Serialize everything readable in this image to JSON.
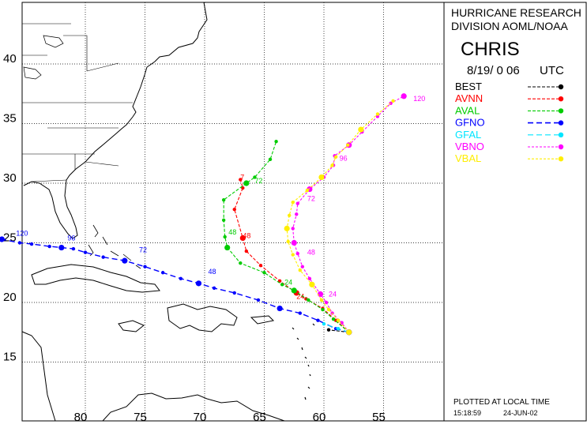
{
  "panel": {
    "org_line1": "HURRICANE RESEARCH",
    "org_line2": "DIVISION AOML/NOAA",
    "storm_name": "CHRIS",
    "date_time": "8/19/ 0 06",
    "time_zone": "UTC",
    "plotted_label": "PLOTTED AT LOCAL TIME",
    "plot_time": "15:18:59",
    "plot_date": "24-JUN-02"
  },
  "axes": {
    "lat_labels": [
      "40",
      "35",
      "30",
      "25",
      "20",
      "15"
    ],
    "lon_labels": [
      "80",
      "75",
      "70",
      "65",
      "60",
      "55"
    ],
    "lat_range": [
      10.5,
      44.5
    ],
    "lon_range": [
      -88.3,
      -52.5
    ]
  },
  "legend": [
    {
      "name": "BEST",
      "color": "#000000",
      "dash": "4,2"
    },
    {
      "name": "AVNN",
      "color": "#ff0000",
      "dash": "4,2"
    },
    {
      "name": "AVAL",
      "color": "#00cc00",
      "dash": "4,2"
    },
    {
      "name": "GFNO",
      "color": "#0000ff",
      "dash": "7,4"
    },
    {
      "name": "GFAL",
      "color": "#00e5ff",
      "dash": "7,4"
    },
    {
      "name": "VBNO",
      "color": "#ff00ff",
      "dash": "3,2"
    },
    {
      "name": "VBAL",
      "color": "#ffee00",
      "dash": "3,2"
    }
  ],
  "tracks": [
    {
      "name": "BEST",
      "color": "#000000",
      "points": [
        [
          -57.9,
          17.5
        ],
        [
          -59.6,
          17.7
        ]
      ],
      "labels": []
    },
    {
      "name": "AVNN",
      "color": "#ff0000",
      "points": [
        [
          -57.9,
          17.5
        ],
        [
          -59.0,
          18.5
        ],
        [
          -60.1,
          19.5
        ],
        [
          -61.5,
          20.3
        ],
        [
          -62.3,
          20.8
        ],
        [
          -63.7,
          21.8
        ],
        [
          -65.3,
          23.1
        ],
        [
          -66.5,
          24.3
        ],
        [
          -66.8,
          25.4
        ],
        [
          -67.5,
          27.8
        ],
        [
          -66.8,
          29.6
        ],
        [
          -67.0,
          30.3
        ]
      ],
      "labels": [
        {
          "text": "24",
          "lon": -62.3,
          "lat": 20.3
        },
        {
          "text": "48",
          "lon": -66.8,
          "lat": 25.4
        },
        {
          "text": "7",
          "lon": -67.0,
          "lat": 30.3
        }
      ]
    },
    {
      "name": "AVAL",
      "color": "#00cc00",
      "points": [
        [
          -57.9,
          17.5
        ],
        [
          -59.2,
          18.6
        ],
        [
          -60.1,
          19.4
        ],
        [
          -61.3,
          20.2
        ],
        [
          -62.5,
          21.0
        ],
        [
          -63.5,
          21.5
        ],
        [
          -65.0,
          22.5
        ],
        [
          -67.0,
          23.3
        ],
        [
          -68.1,
          24.6
        ],
        [
          -68.3,
          25.5
        ],
        [
          -68.4,
          26.9
        ],
        [
          -68.4,
          28.6
        ],
        [
          -66.5,
          30.0
        ],
        [
          -65.8,
          30.5
        ],
        [
          -64.5,
          32.0
        ],
        [
          -64.0,
          33.5
        ]
      ],
      "labels": [
        {
          "text": "24",
          "lon": -63.3,
          "lat": 21.5
        },
        {
          "text": "48",
          "lon": -68.0,
          "lat": 25.7
        },
        {
          "text": "72",
          "lon": -65.8,
          "lat": 30.0
        }
      ]
    },
    {
      "name": "GFNO",
      "color": "#0000ff",
      "points": [
        [
          -57.9,
          17.5
        ],
        [
          -59.0,
          17.8
        ],
        [
          -60.5,
          18.5
        ],
        [
          -62.0,
          19.1
        ],
        [
          -63.7,
          19.5
        ],
        [
          -65.5,
          20.2
        ],
        [
          -67.5,
          20.8
        ],
        [
          -69.2,
          21.2
        ],
        [
          -70.5,
          21.6
        ],
        [
          -72.0,
          22.0
        ],
        [
          -73.5,
          22.5
        ],
        [
          -75.0,
          23.0
        ],
        [
          -76.7,
          23.5
        ],
        [
          -78.5,
          23.8
        ],
        [
          -80.0,
          24.2
        ],
        [
          -81.0,
          24.5
        ],
        [
          -82.0,
          24.6
        ],
        [
          -83.0,
          24.7
        ],
        [
          -84.5,
          24.9
        ],
        [
          -85.5,
          25.0
        ],
        [
          -87.0,
          25.3
        ]
      ],
      "labels": [
        {
          "text": "48",
          "lon": -69.7,
          "lat": 22.4
        },
        {
          "text": "72",
          "lon": -75.5,
          "lat": 24.2
        },
        {
          "text": "96",
          "lon": -81.5,
          "lat": 25.2
        },
        {
          "text": "120",
          "lon": -85.8,
          "lat": 25.6
        }
      ]
    },
    {
      "name": "GFAL",
      "color": "#00e5ff",
      "points": [
        [
          -57.9,
          17.5
        ],
        [
          -58.8,
          17.8
        ],
        [
          -60.0,
          18.2
        ]
      ],
      "labels": []
    },
    {
      "name": "VBNO",
      "color": "#ff00ff",
      "points": [
        [
          -57.9,
          17.5
        ],
        [
          -58.5,
          18.3
        ],
        [
          -59.3,
          19.1
        ],
        [
          -59.8,
          20.0
        ],
        [
          -60.3,
          20.7
        ],
        [
          -61.2,
          22.0
        ],
        [
          -61.8,
          23.0
        ],
        [
          -62.2,
          24.1
        ],
        [
          -62.5,
          25.0
        ],
        [
          -62.6,
          26.2
        ],
        [
          -62.3,
          27.4
        ],
        [
          -62.2,
          28.3
        ],
        [
          -61.2,
          29.5
        ],
        [
          -60.0,
          30.5
        ],
        [
          -59.2,
          31.5
        ],
        [
          -59.1,
          32.3
        ],
        [
          -57.9,
          33.2
        ],
        [
          -56.8,
          34.3
        ],
        [
          -55.5,
          35.6
        ],
        [
          -54.4,
          36.7
        ],
        [
          -53.3,
          37.3
        ]
      ],
      "labels": [
        {
          "text": "24",
          "lon": -59.6,
          "lat": 20.5
        },
        {
          "text": "48",
          "lon": -61.4,
          "lat": 24.0
        },
        {
          "text": "72",
          "lon": -61.4,
          "lat": 28.5
        },
        {
          "text": "96",
          "lon": -58.7,
          "lat": 31.9
        },
        {
          "text": "120",
          "lon": -52.5,
          "lat": 36.9
        }
      ]
    },
    {
      "name": "VBAL",
      "color": "#ffee00",
      "points": [
        [
          -57.9,
          17.5
        ],
        [
          -58.8,
          18.5
        ],
        [
          -59.6,
          19.4
        ],
        [
          -60.2,
          20.2
        ],
        [
          -61.0,
          21.5
        ],
        [
          -62.0,
          22.7
        ],
        [
          -62.6,
          24.0
        ],
        [
          -63.0,
          25.1
        ],
        [
          -63.1,
          26.2
        ],
        [
          -62.9,
          27.3
        ],
        [
          -62.6,
          28.4
        ],
        [
          -61.4,
          29.4
        ],
        [
          -60.2,
          30.5
        ],
        [
          -59.3,
          31.5
        ],
        [
          -59.0,
          32.2
        ],
        [
          -58.0,
          33.2
        ],
        [
          -56.9,
          34.5
        ],
        [
          -55.5,
          35.8
        ],
        [
          -54.2,
          36.9
        ]
      ],
      "labels": []
    }
  ]
}
